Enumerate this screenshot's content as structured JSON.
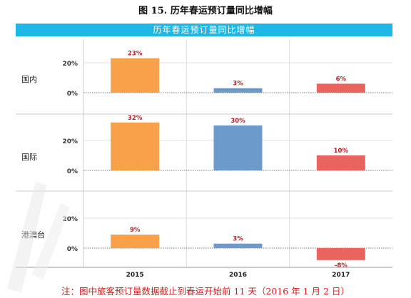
{
  "figure_title": "图 15. 历年春运预订量同比增幅",
  "note": "注：图中旅客预订量数据截止到春运开始前 11 天（2016 年 1 月 2 日）",
  "colors": {
    "header": "#1eb8e4",
    "2015": "#f9a04b",
    "2016": "#6b9acb",
    "2017": "#e8645c",
    "value_label": "#b22222",
    "note": "#d11f1f"
  },
  "chart_data": {
    "type": "bar",
    "title": "历年春运预订量同比增幅",
    "layout": "small-multiples",
    "categories": [
      "2015",
      "2016",
      "2017"
    ],
    "y_ticks": [
      "0%",
      "20%"
    ],
    "ylim": [
      -10,
      40
    ],
    "grid": true,
    "panels": [
      {
        "name": "国内",
        "values": [
          23,
          3,
          6
        ],
        "labels": [
          "23%",
          "3%",
          "6%"
        ]
      },
      {
        "name": "国际",
        "values": [
          32,
          30,
          10
        ],
        "labels": [
          "32%",
          "30%",
          "10%"
        ]
      },
      {
        "name": "港澳台",
        "values": [
          9,
          3,
          -8
        ],
        "labels": [
          "9%",
          "3%",
          "-8%"
        ]
      }
    ]
  }
}
